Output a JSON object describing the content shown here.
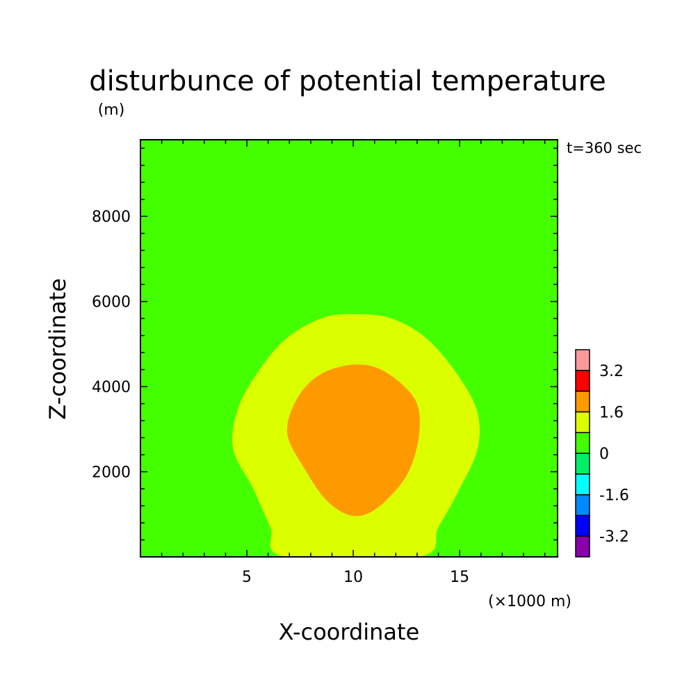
{
  "chart_data": {
    "type": "contour",
    "title": "disturbunce of potential temperature",
    "z_unit_label": "(m)",
    "time_label": "t=360 sec",
    "xlabel": "X-coordinate",
    "x_unit_label": "(×1000 m)",
    "ylabel": "Z-coordinate",
    "xlim": [
      0,
      19.6
    ],
    "ylim": [
      0,
      9800
    ],
    "x_ticks": [
      5,
      10,
      15
    ],
    "y_ticks": [
      2000,
      4000,
      6000,
      8000
    ],
    "background_color": "#44ff00",
    "regions": [
      {
        "level": "0.8 to 1.6",
        "color": "#dcff00",
        "boundary": [
          [
            6.8,
            0
          ],
          [
            6.1,
            700
          ],
          [
            5.3,
            1600
          ],
          [
            4.35,
            2550
          ],
          [
            4.6,
            3500
          ],
          [
            5.6,
            4400
          ],
          [
            6.9,
            5150
          ],
          [
            8.6,
            5620
          ],
          [
            10.2,
            5700
          ],
          [
            11.8,
            5600
          ],
          [
            13.4,
            5150
          ],
          [
            14.8,
            4350
          ],
          [
            15.8,
            3450
          ],
          [
            15.85,
            2550
          ],
          [
            15.0,
            1600
          ],
          [
            14.0,
            700
          ],
          [
            13.1,
            0
          ]
        ]
      },
      {
        "level": "1.6 to 2.4",
        "color": "#ff9900",
        "boundary": [
          [
            9.7,
            1000
          ],
          [
            8.7,
            1350
          ],
          [
            7.8,
            2000
          ],
          [
            6.9,
            2900
          ],
          [
            7.4,
            3750
          ],
          [
            8.5,
            4300
          ],
          [
            10.1,
            4520
          ],
          [
            11.5,
            4350
          ],
          [
            12.9,
            3700
          ],
          [
            13.1,
            2900
          ],
          [
            12.6,
            2000
          ],
          [
            11.6,
            1350
          ],
          [
            10.6,
            1000
          ]
        ]
      }
    ],
    "colorbar": {
      "boxes": [
        {
          "color": "#8800aa"
        },
        {
          "color": "#0000ff"
        },
        {
          "color": "#0088ff"
        },
        {
          "color": "#00ffff"
        },
        {
          "color": "#00ee66"
        },
        {
          "color": "#44ff00"
        },
        {
          "color": "#dcff00"
        },
        {
          "color": "#ff9900"
        },
        {
          "color": "#ff0000"
        },
        {
          "color": "#ff9999"
        }
      ],
      "labels": [
        "-3.2",
        "-1.6",
        "0",
        "1.6",
        "3.2"
      ],
      "label_values": [
        -3.2,
        -1.6,
        0,
        1.6,
        3.2
      ],
      "range": [
        -4.0,
        4.0
      ]
    }
  }
}
